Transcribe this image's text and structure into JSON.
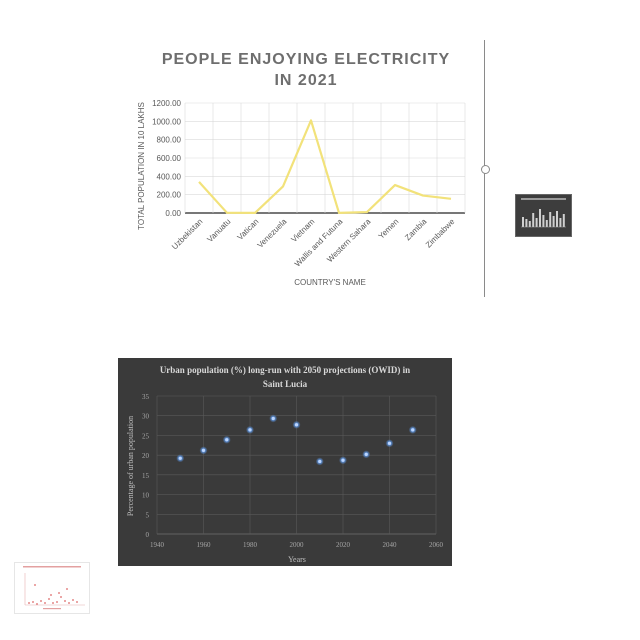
{
  "chart_data": [
    {
      "type": "line",
      "title": "PEOPLE ENJOYING ELECTRICITY",
      "title_line2": "IN 2021",
      "xlabel": "COUNTRY'S NAME",
      "ylabel": "TOTAL POPULATION IN 10 LAKHS",
      "categories": [
        "Uzbekistan",
        "Vanuatu",
        "Vatican",
        "Venezuela",
        "Vietnam",
        "Wallis and Futuna",
        "Western Sahara",
        "Yemen",
        "Zambia",
        "Zimbabwe"
      ],
      "values": [
        340,
        2,
        1,
        290,
        1010,
        1,
        10,
        305,
        190,
        155
      ],
      "yticks": [
        "0.00",
        "200.00",
        "400.00",
        "600.00",
        "800.00",
        "1000.00",
        "1200.00"
      ],
      "ylim": [
        0,
        1200
      ],
      "grid": true,
      "colors": {
        "line": "#f2e27a",
        "title": "#6e6e6e",
        "text": "#595959",
        "grid": "#d9d9d9"
      }
    },
    {
      "type": "scatter",
      "title": "Urban population (%) long-run with 2050 projections (OWID) in",
      "title_line2": "Saint Lucia",
      "xlabel": "Years",
      "ylabel": "Percentage of urban population",
      "points": [
        {
          "x": 1950,
          "y": 19.2
        },
        {
          "x": 1960,
          "y": 21.2
        },
        {
          "x": 1970,
          "y": 23.9
        },
        {
          "x": 1980,
          "y": 26.4
        },
        {
          "x": 1990,
          "y": 29.3
        },
        {
          "x": 2000,
          "y": 27.7
        },
        {
          "x": 2010,
          "y": 18.4
        },
        {
          "x": 2020,
          "y": 18.7
        },
        {
          "x": 2030,
          "y": 20.2
        },
        {
          "x": 2040,
          "y": 23.0
        },
        {
          "x": 2050,
          "y": 26.4
        }
      ],
      "xticks": [
        "1940",
        "1960",
        "1980",
        "2000",
        "2020",
        "2040",
        "2060"
      ],
      "yticks": [
        "0",
        "5",
        "10",
        "15",
        "20",
        "25",
        "30",
        "35"
      ],
      "xlim": [
        1940,
        2060
      ],
      "ylim": [
        0,
        35
      ],
      "grid": true,
      "colors": {
        "background": "#3a3a3a",
        "marker": "#5b8fd6",
        "text": "#d9d9d9",
        "tick": "#a6a6a6",
        "grid": "#595959"
      }
    }
  ],
  "thumbnails": [
    {
      "name": "dark-bar-chart-thumbnail",
      "style": "dark"
    },
    {
      "name": "light-scatter-chart-thumbnail",
      "style": "light"
    }
  ]
}
